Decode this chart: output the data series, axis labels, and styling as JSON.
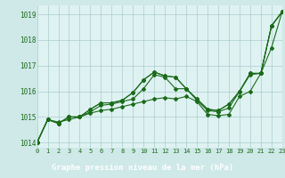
{
  "background_color": "#cfe8e8",
  "plot_bg_color": "#dff2f2",
  "grid_color": "#aacccc",
  "line_color": "#1a6b1a",
  "marker_color": "#1a6b1a",
  "footer_bg": "#2d6b2d",
  "footer_text": "Graphe pression niveau de la mer (hPa)",
  "footer_text_color": "#ffffff",
  "ylabel_ticks": [
    1014,
    1015,
    1016,
    1017,
    1018,
    1019
  ],
  "xlim": [
    0,
    23
  ],
  "ylim": [
    1013.8,
    1019.35
  ],
  "series": [
    [
      1014.0,
      1014.9,
      1014.8,
      1014.9,
      1015.0,
      1015.15,
      1015.25,
      1015.3,
      1015.4,
      1015.5,
      1015.6,
      1015.7,
      1015.75,
      1015.7,
      1015.8,
      1015.6,
      1015.1,
      1015.05,
      1015.1,
      1015.8,
      1016.0,
      1016.7,
      1017.7,
      1019.1
    ],
    [
      1014.0,
      1014.9,
      1014.75,
      1015.0,
      1015.0,
      1015.2,
      1015.45,
      1015.5,
      1015.6,
      1015.7,
      1016.1,
      1016.65,
      1016.55,
      1016.1,
      1016.1,
      1015.65,
      1015.25,
      1015.2,
      1015.35,
      1016.0,
      1016.65,
      1016.7,
      1018.55,
      1019.1
    ],
    [
      1014.0,
      1014.9,
      1014.75,
      1015.0,
      1015.0,
      1015.3,
      1015.55,
      1015.55,
      1015.65,
      1015.95,
      1016.45,
      1016.75,
      1016.6,
      1016.55,
      1016.1,
      1015.7,
      1015.3,
      1015.25,
      1015.5,
      1016.0,
      1016.7,
      1016.7,
      1018.55,
      1019.1
    ],
    [
      1014.0,
      1014.9,
      1014.75,
      1015.0,
      1015.0,
      1015.3,
      1015.55,
      1015.55,
      1015.65,
      1015.95,
      1016.45,
      1016.75,
      1016.6,
      1016.55,
      1016.1,
      1015.7,
      1015.3,
      1015.25,
      1015.5,
      1016.0,
      1016.7,
      1016.7,
      1018.55,
      1019.1
    ]
  ]
}
